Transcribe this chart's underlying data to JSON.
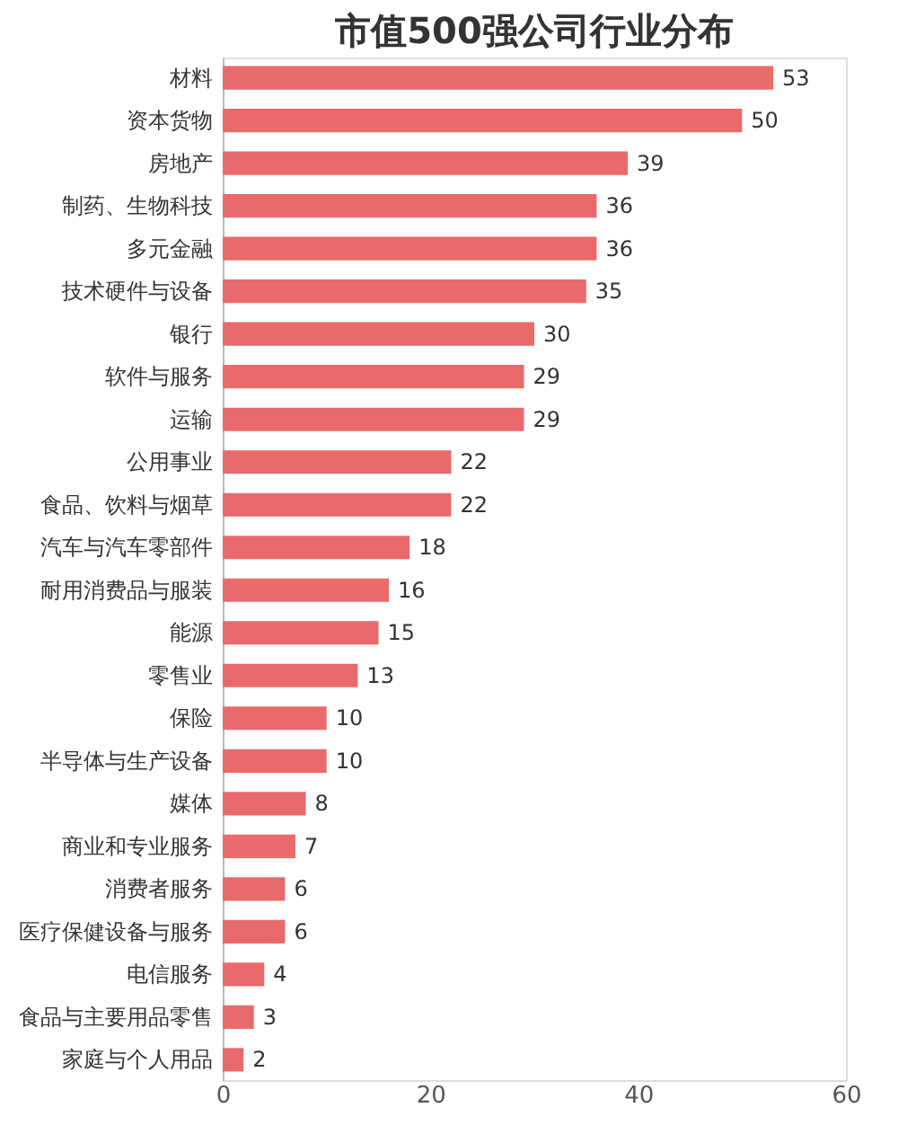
{
  "chart_data": {
    "type": "bar",
    "orientation": "horizontal",
    "title": "市值500强公司行业分布",
    "categories": [
      "材料",
      "资本货物",
      "房地产",
      "制药、生物科技",
      "多元金融",
      "技术硬件与设备",
      "银行",
      "软件与服务",
      "运输",
      "公用事业",
      "食品、饮料与烟草",
      "汽车与汽车零部件",
      "耐用消费品与服装",
      "能源",
      "零售业",
      "保险",
      "半导体与生产设备",
      "媒体",
      "商业和专业服务",
      "消费者服务",
      "医疗保健设备与服务",
      "电信服务",
      "食品与主要用品零售",
      "家庭与个人用品"
    ],
    "values": [
      53,
      50,
      39,
      36,
      36,
      35,
      30,
      29,
      29,
      22,
      22,
      18,
      16,
      15,
      13,
      10,
      10,
      8,
      7,
      6,
      6,
      4,
      3,
      2
    ],
    "color": "#e96a6a",
    "xlim": [
      0,
      60
    ],
    "xticks": [
      0,
      20,
      40,
      60
    ],
    "data_labels": true,
    "grid": false
  }
}
